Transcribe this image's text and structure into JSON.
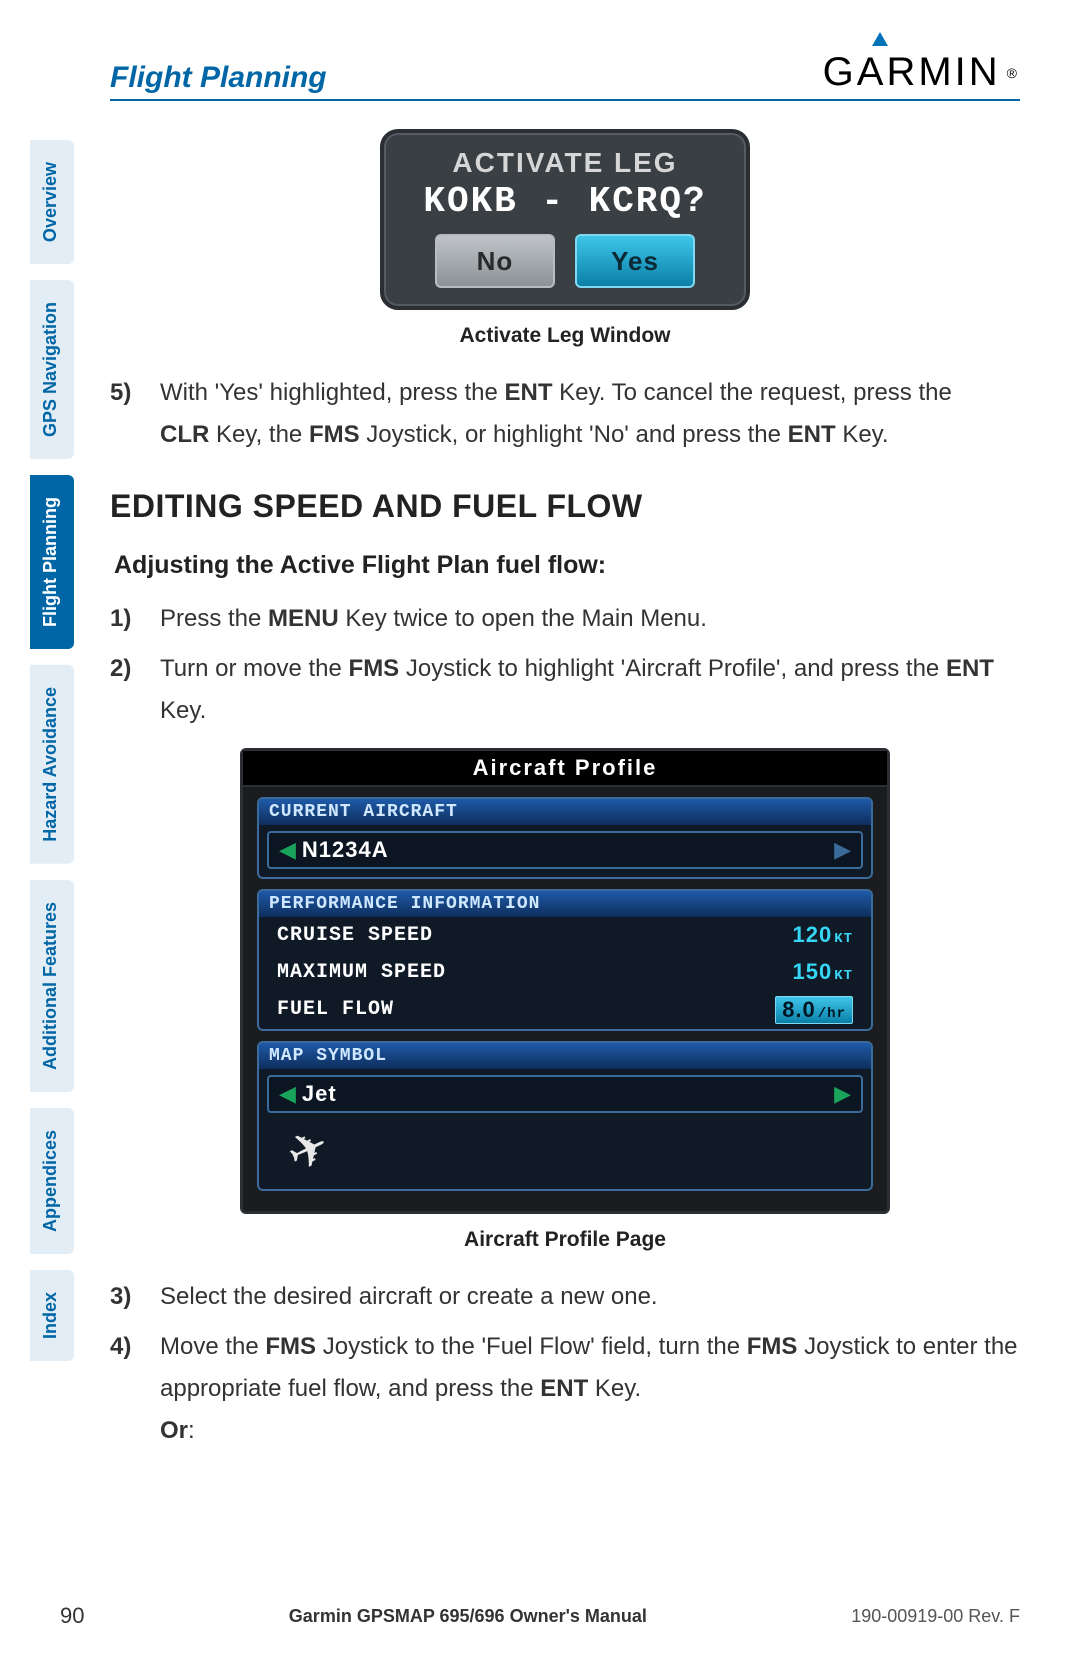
{
  "header": {
    "section_title": "Flight Planning",
    "logo_text": "GARMIN"
  },
  "side_tabs": [
    {
      "label": "Overview",
      "active": false
    },
    {
      "label": "GPS Navigation",
      "active": false
    },
    {
      "label": "Flight Planning",
      "active": true
    },
    {
      "label": "Hazard Avoidance",
      "active": false
    },
    {
      "label": "Additional Features",
      "active": false
    },
    {
      "label": "Appendices",
      "active": false
    },
    {
      "label": "Index",
      "active": false
    }
  ],
  "activate_leg": {
    "title": "Activate leg",
    "leg": "KOKB - KCRQ?",
    "no_label": "No",
    "yes_label": "Yes",
    "caption": "Activate Leg Window"
  },
  "step5": {
    "num": "5)",
    "text_a": "With 'Yes' highlighted, press the ",
    "ent": "ENT",
    "text_b": " Key.  To cancel the request, press the ",
    "clr": "CLR",
    "text_c": " Key, the ",
    "fms": "FMS",
    "text_d": " Joystick, or highlight 'No' and press the ",
    "text_e": " Key."
  },
  "heading": "EDITING SPEED AND FUEL FLOW",
  "subheading": "Adjusting the Active Flight Plan fuel flow:",
  "step1": {
    "num": "1)",
    "text_a": "Press the ",
    "menu": "MENU",
    "text_b": " Key twice to open the Main Menu."
  },
  "step2": {
    "num": "2)",
    "text_a": "Turn or move the ",
    "fms": "FMS",
    "text_b": " Joystick to highlight 'Aircraft Profile', and press the ",
    "ent": "ENT",
    "text_c": " Key."
  },
  "profile": {
    "title": "Aircraft Profile",
    "current_aircraft_label": "CURRENT AIRCRAFT",
    "current_aircraft_value": "N1234A",
    "perf_label": "PERFORMANCE INFORMATION",
    "cruise_label": "CRUISE SPEED",
    "cruise_value": "120",
    "cruise_unit": "KT",
    "max_label": "MAXIMUM SPEED",
    "max_value": "150",
    "max_unit": "KT",
    "fuel_label": "FUEL FLOW",
    "fuel_value": "8.0",
    "fuel_unit": "/hr",
    "map_label": "MAP SYMBOL",
    "map_value": "Jet",
    "caption": "Aircraft Profile Page"
  },
  "step3": {
    "num": "3)",
    "text": "Select the desired aircraft or create a new one."
  },
  "step4": {
    "num": "4)",
    "text_a": "Move the ",
    "fms": "FMS",
    "text_b": " Joystick to the 'Fuel Flow' field, turn the ",
    "text_c": " Joystick to enter the appropriate fuel flow, and press the ",
    "ent": "ENT",
    "text_d": " Key.",
    "or": "Or"
  },
  "footer": {
    "page": "90",
    "center": "Garmin GPSMAP 695/696 Owner's Manual",
    "right": "190-00919-00  Rev. F"
  },
  "colors": {
    "brand_blue": "#0066a6",
    "tab_bg": "#e3edf5",
    "cyan": "#37d5f5",
    "panel_blue": "#1f5aa8"
  }
}
